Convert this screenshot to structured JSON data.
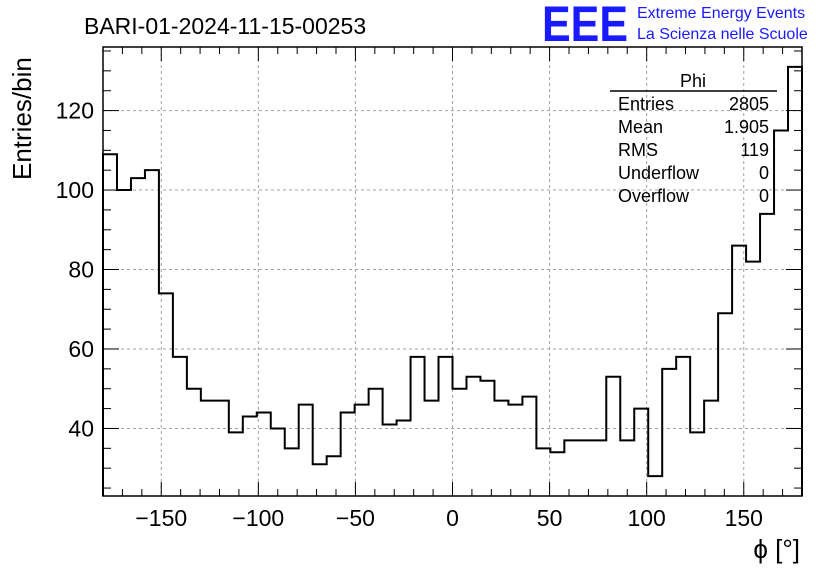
{
  "chart_data": {
    "type": "histogram",
    "title": "BARI-01-2024-11-15-00253",
    "xlabel": "ϕ [°]",
    "ylabel": "Entries/bin",
    "xlim": [
      -180,
      180
    ],
    "ylim": [
      23,
      136
    ],
    "bin_width": 7.2,
    "x_ticks": [
      -150,
      -100,
      -50,
      0,
      50,
      100,
      150
    ],
    "x_tick_labels": [
      "−150",
      "−100",
      "−50",
      "0",
      "50",
      "100",
      "150"
    ],
    "y_ticks": [
      40,
      60,
      80,
      100,
      120
    ],
    "y_tick_labels": [
      "40",
      "60",
      "80",
      "100",
      "120"
    ],
    "grid": true,
    "values": [
      109,
      100,
      103,
      105,
      74,
      58,
      50,
      47,
      47,
      39,
      43,
      44,
      40,
      35,
      46,
      31,
      33,
      44,
      46,
      50,
      41,
      42,
      58,
      47,
      58,
      50,
      53,
      52,
      47,
      46,
      48,
      35,
      34,
      37,
      37,
      37,
      53,
      37,
      45,
      28,
      55,
      58,
      39,
      47,
      69,
      86,
      82,
      94,
      115,
      131
    ],
    "stats": {
      "name": "Phi",
      "rows": [
        {
          "label": "Entries",
          "value": "2805"
        },
        {
          "label": "Mean",
          "value": "1.905"
        },
        {
          "label": "RMS",
          "value": "119"
        },
        {
          "label": "Underflow",
          "value": "0"
        },
        {
          "label": "Overflow",
          "value": "0"
        }
      ],
      "placement": "top-right"
    }
  },
  "branding": {
    "logo_text": "EEE",
    "line1": "Extreme Energy Events",
    "line2": "La Scienza nelle Scuole",
    "color": "#1a1aff"
  }
}
